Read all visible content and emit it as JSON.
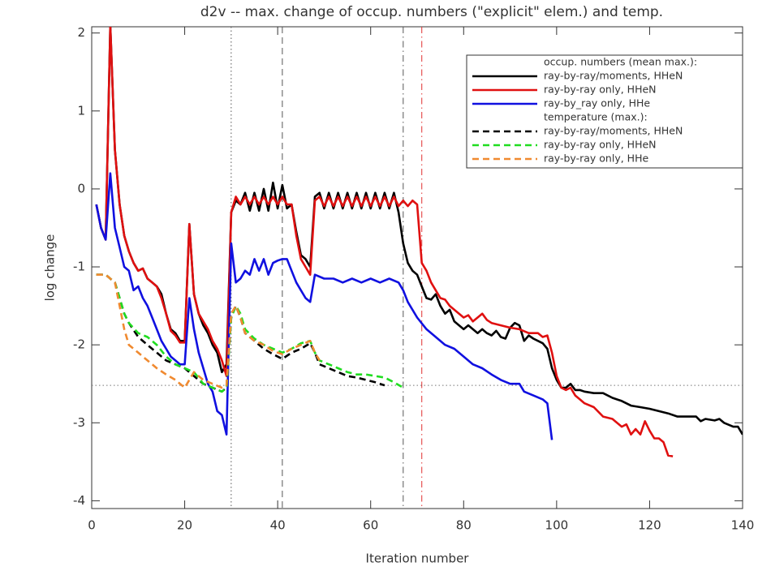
{
  "chart_data": {
    "type": "line",
    "title": "d2v -- max. change of occup. numbers (\"explicit\" elem.) and temp.",
    "x_label": "Iteration number",
    "y_label": "log change",
    "xlim": [
      0,
      140
    ],
    "xticks": [
      0,
      20,
      40,
      60,
      80,
      100,
      120,
      140
    ],
    "ylim": [
      -4.1,
      2.08
    ],
    "yticks": [
      -4,
      -3,
      -2,
      -1,
      0,
      1,
      2
    ],
    "legend_position": "upper right",
    "legend_headings": [
      "occup. numbers (mean max.):",
      "temperature (max.):"
    ],
    "vlines": [
      {
        "x": 30,
        "style": "dotted",
        "color": "#555555"
      },
      {
        "x": 41,
        "style": "dashed",
        "color": "#555555"
      },
      {
        "x": 67,
        "style": "dashdot",
        "color": "#555555"
      },
      {
        "x": 71,
        "style": "dashdot",
        "color": "#e03030"
      }
    ],
    "hlines": [
      {
        "y": -2.52,
        "style": "dotted",
        "color": "#777777"
      }
    ],
    "series": [
      {
        "name": "ray-by-ray/moments, HHeN",
        "color": "#000000",
        "linestyle": "solid",
        "x": [
          1,
          2,
          3,
          4,
          5,
          6,
          7,
          8,
          9,
          10,
          11,
          12,
          13,
          14,
          15,
          16,
          17,
          18,
          19,
          20,
          21,
          22,
          23,
          24,
          25,
          26,
          27,
          28,
          29,
          30,
          31,
          32,
          33,
          34,
          35,
          36,
          37,
          38,
          39,
          40,
          41,
          42,
          43,
          44,
          45,
          46,
          47,
          48,
          49,
          50,
          51,
          52,
          53,
          54,
          55,
          56,
          57,
          58,
          59,
          60,
          61,
          62,
          63,
          64,
          65,
          66,
          67,
          68,
          69,
          70,
          71,
          72,
          73,
          74,
          75,
          76,
          77,
          78,
          79,
          80,
          81,
          82,
          83,
          84,
          85,
          86,
          87,
          88,
          89,
          90,
          91,
          92,
          93,
          94,
          95,
          96,
          97,
          98,
          99,
          100,
          101,
          102,
          103,
          104,
          105,
          106,
          108,
          110,
          112,
          114,
          116,
          118,
          120,
          122,
          124,
          126,
          130,
          131,
          132,
          134,
          135,
          136,
          138,
          139,
          140
        ],
        "values": [
          -0.2,
          -0.5,
          -0.65,
          2.1,
          0.5,
          -0.2,
          -0.6,
          -0.8,
          -0.95,
          -1.05,
          -1.02,
          -1.15,
          -1.2,
          -1.25,
          -1.35,
          -1.6,
          -1.8,
          -1.85,
          -1.95,
          -1.95,
          -0.45,
          -1.35,
          -1.6,
          -1.75,
          -1.85,
          -2.0,
          -2.1,
          -2.35,
          -2.25,
          -0.3,
          -0.15,
          -0.2,
          -0.05,
          -0.28,
          -0.05,
          -0.28,
          0.0,
          -0.28,
          0.08,
          -0.25,
          0.05,
          -0.25,
          -0.2,
          -0.55,
          -0.85,
          -0.9,
          -1.0,
          -0.1,
          -0.05,
          -0.25,
          -0.05,
          -0.25,
          -0.05,
          -0.25,
          -0.05,
          -0.25,
          -0.05,
          -0.25,
          -0.05,
          -0.25,
          -0.05,
          -0.25,
          -0.05,
          -0.25,
          -0.05,
          -0.3,
          -0.7,
          -0.95,
          -1.05,
          -1.1,
          -1.25,
          -1.4,
          -1.42,
          -1.35,
          -1.5,
          -1.6,
          -1.55,
          -1.7,
          -1.75,
          -1.8,
          -1.75,
          -1.8,
          -1.85,
          -1.8,
          -1.85,
          -1.88,
          -1.82,
          -1.9,
          -1.92,
          -1.78,
          -1.72,
          -1.75,
          -1.95,
          -1.88,
          -1.92,
          -1.95,
          -1.98,
          -2.05,
          -2.3,
          -2.45,
          -2.55,
          -2.55,
          -2.5,
          -2.58,
          -2.58,
          -2.6,
          -2.62,
          -2.62,
          -2.68,
          -2.72,
          -2.78,
          -2.8,
          -2.82,
          -2.85,
          -2.88,
          -2.92,
          -2.92,
          -2.98,
          -2.95,
          -2.97,
          -2.95,
          -3.0,
          -3.05,
          -3.05,
          -3.15
        ]
      },
      {
        "name": "ray-by-ray only, HHeN",
        "color": "#e01010",
        "linestyle": "solid",
        "x": [
          1,
          2,
          3,
          4,
          5,
          6,
          7,
          8,
          9,
          10,
          11,
          12,
          13,
          14,
          15,
          16,
          17,
          18,
          19,
          20,
          21,
          22,
          23,
          24,
          25,
          26,
          27,
          28,
          29,
          30,
          31,
          32,
          33,
          34,
          35,
          36,
          37,
          38,
          39,
          40,
          41,
          42,
          43,
          44,
          45,
          46,
          47,
          48,
          49,
          50,
          51,
          52,
          53,
          54,
          55,
          56,
          57,
          58,
          59,
          60,
          61,
          62,
          63,
          64,
          65,
          66,
          67,
          68,
          69,
          70,
          71,
          72,
          73,
          74,
          75,
          76,
          77,
          78,
          79,
          80,
          81,
          82,
          83,
          84,
          85,
          86,
          88,
          90,
          92,
          94,
          96,
          97,
          98,
          99,
          100,
          101,
          102,
          103,
          104,
          105,
          106,
          108,
          110,
          112,
          114,
          115,
          116,
          117,
          118,
          119,
          120,
          121,
          122,
          123,
          124,
          125
        ],
        "values": [
          -0.2,
          -0.5,
          -0.65,
          2.1,
          0.5,
          -0.2,
          -0.6,
          -0.8,
          -0.95,
          -1.05,
          -1.02,
          -1.15,
          -1.2,
          -1.25,
          -1.4,
          -1.6,
          -1.82,
          -1.88,
          -1.97,
          -1.97,
          -0.45,
          -1.35,
          -1.6,
          -1.7,
          -1.8,
          -1.95,
          -2.05,
          -2.2,
          -2.4,
          -0.3,
          -0.1,
          -0.2,
          -0.1,
          -0.2,
          -0.1,
          -0.2,
          -0.1,
          -0.2,
          -0.1,
          -0.2,
          -0.1,
          -0.2,
          -0.2,
          -0.6,
          -0.9,
          -1.0,
          -1.1,
          -0.15,
          -0.1,
          -0.22,
          -0.1,
          -0.22,
          -0.1,
          -0.22,
          -0.1,
          -0.22,
          -0.1,
          -0.22,
          -0.1,
          -0.22,
          -0.1,
          -0.22,
          -0.1,
          -0.22,
          -0.1,
          -0.22,
          -0.15,
          -0.22,
          -0.15,
          -0.2,
          -0.95,
          -1.05,
          -1.2,
          -1.3,
          -1.4,
          -1.42,
          -1.5,
          -1.55,
          -1.6,
          -1.65,
          -1.62,
          -1.7,
          -1.65,
          -1.6,
          -1.68,
          -1.72,
          -1.75,
          -1.78,
          -1.8,
          -1.85,
          -1.85,
          -1.9,
          -1.88,
          -2.1,
          -2.4,
          -2.55,
          -2.58,
          -2.55,
          -2.65,
          -2.7,
          -2.75,
          -2.8,
          -2.92,
          -2.95,
          -3.05,
          -3.02,
          -3.15,
          -3.08,
          -3.15,
          -2.98,
          -3.1,
          -3.2,
          -3.2,
          -3.25,
          -3.42,
          -3.43
        ]
      },
      {
        "name": "ray-by_ray only, HHe",
        "color": "#1010e0",
        "linestyle": "solid",
        "x": [
          1,
          2,
          3,
          4,
          5,
          6,
          7,
          8,
          9,
          10,
          11,
          12,
          13,
          14,
          15,
          16,
          17,
          18,
          19,
          20,
          21,
          22,
          23,
          24,
          25,
          26,
          27,
          28,
          29,
          30,
          31,
          32,
          33,
          34,
          35,
          36,
          37,
          38,
          39,
          40,
          41,
          42,
          43,
          44,
          45,
          46,
          47,
          48,
          50,
          52,
          54,
          56,
          58,
          60,
          62,
          64,
          66,
          67,
          68,
          70,
          72,
          74,
          76,
          78,
          80,
          82,
          84,
          86,
          88,
          90,
          92,
          93,
          95,
          97,
          98,
          99
        ],
        "values": [
          -0.2,
          -0.5,
          -0.65,
          0.2,
          -0.5,
          -0.75,
          -1.0,
          -1.05,
          -1.3,
          -1.25,
          -1.4,
          -1.5,
          -1.65,
          -1.8,
          -1.95,
          -2.05,
          -2.15,
          -2.2,
          -2.25,
          -2.25,
          -1.4,
          -1.8,
          -2.1,
          -2.3,
          -2.5,
          -2.6,
          -2.85,
          -2.9,
          -3.15,
          -0.7,
          -1.2,
          -1.15,
          -1.05,
          -1.1,
          -0.9,
          -1.05,
          -0.9,
          -1.1,
          -0.95,
          -0.92,
          -0.9,
          -0.9,
          -1.05,
          -1.2,
          -1.3,
          -1.4,
          -1.45,
          -1.1,
          -1.15,
          -1.15,
          -1.2,
          -1.15,
          -1.2,
          -1.15,
          -1.2,
          -1.15,
          -1.2,
          -1.3,
          -1.45,
          -1.65,
          -1.8,
          -1.9,
          -2.0,
          -2.05,
          -2.15,
          -2.25,
          -2.3,
          -2.38,
          -2.45,
          -2.5,
          -2.5,
          -2.6,
          -2.65,
          -2.7,
          -2.75,
          -3.22
        ]
      },
      {
        "name": "ray-by-ray/moments, HHeN",
        "color": "#000000",
        "linestyle": "dashed",
        "x": [
          1,
          3,
          5,
          6,
          7,
          8,
          10,
          12,
          14,
          16,
          18,
          20,
          22,
          24,
          26,
          28,
          29,
          30,
          31,
          32,
          33,
          35,
          37,
          39,
          41,
          43,
          45,
          47,
          48,
          49,
          51,
          53,
          55,
          57,
          59,
          61,
          63
        ],
        "values": [
          -1.1,
          -1.1,
          -1.2,
          -1.4,
          -1.6,
          -1.72,
          -1.9,
          -2.0,
          -2.1,
          -2.2,
          -2.25,
          -2.3,
          -2.4,
          -2.5,
          -2.55,
          -2.6,
          -2.55,
          -1.65,
          -1.5,
          -1.65,
          -1.85,
          -1.95,
          -2.05,
          -2.12,
          -2.18,
          -2.1,
          -2.05,
          -1.98,
          -2.1,
          -2.25,
          -2.3,
          -2.35,
          -2.4,
          -2.42,
          -2.45,
          -2.48,
          -2.52
        ]
      },
      {
        "name": "ray-by-ray only, HHeN",
        "color": "#20dd20",
        "linestyle": "dashed",
        "x": [
          1,
          3,
          5,
          6,
          7,
          8,
          10,
          12,
          14,
          16,
          18,
          20,
          22,
          24,
          26,
          28,
          29,
          30,
          31,
          32,
          33,
          35,
          37,
          39,
          41,
          43,
          45,
          47,
          48,
          49,
          51,
          53,
          55,
          57,
          59,
          61,
          63,
          65,
          67
        ],
        "values": [
          -1.1,
          -1.1,
          -1.2,
          -1.4,
          -1.6,
          -1.72,
          -1.85,
          -1.9,
          -2.0,
          -2.15,
          -2.25,
          -2.3,
          -2.35,
          -2.5,
          -2.55,
          -2.6,
          -2.55,
          -1.65,
          -1.5,
          -1.6,
          -1.8,
          -1.92,
          -2.0,
          -2.05,
          -2.1,
          -2.05,
          -1.98,
          -1.95,
          -2.1,
          -2.2,
          -2.25,
          -2.3,
          -2.35,
          -2.38,
          -2.38,
          -2.4,
          -2.42,
          -2.48,
          -2.55
        ]
      },
      {
        "name": "ray-by-ray only, HHe",
        "color": "#f08a30",
        "linestyle": "dashed",
        "x": [
          1,
          3,
          5,
          6,
          7,
          8,
          10,
          12,
          14,
          16,
          18,
          20,
          22,
          24,
          26,
          28,
          29,
          30,
          31,
          32,
          33,
          35,
          37,
          39,
          41,
          43,
          45,
          47,
          48,
          49
        ],
        "values": [
          -1.1,
          -1.1,
          -1.2,
          -1.5,
          -1.8,
          -2.0,
          -2.1,
          -2.2,
          -2.3,
          -2.38,
          -2.45,
          -2.55,
          -2.35,
          -2.45,
          -2.5,
          -2.55,
          -2.52,
          -1.6,
          -1.5,
          -1.65,
          -1.85,
          -1.95,
          -2.0,
          -2.08,
          -2.12,
          -2.05,
          -2.0,
          -1.95,
          -2.1,
          -2.2
        ]
      }
    ]
  }
}
